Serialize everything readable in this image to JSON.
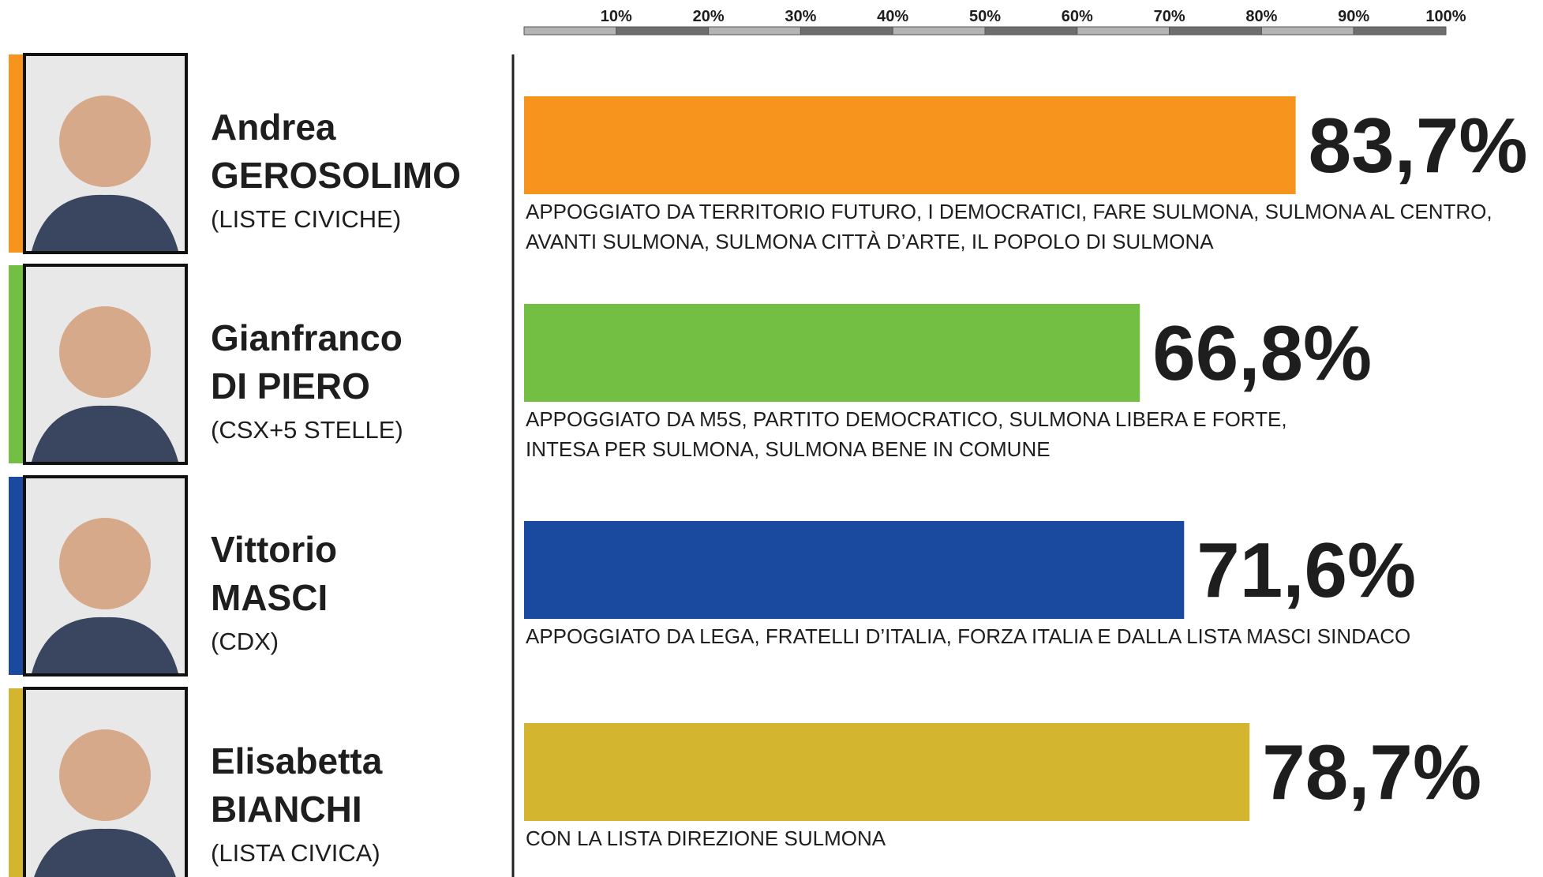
{
  "chart_data": {
    "type": "bar",
    "orientation": "horizontal",
    "xlim": [
      0,
      100
    ],
    "xticks": [
      {
        "value": 10,
        "label": "10%"
      },
      {
        "value": 20,
        "label": "20%"
      },
      {
        "value": 30,
        "label": "30%"
      },
      {
        "value": 40,
        "label": "40%"
      },
      {
        "value": 50,
        "label": "50%"
      },
      {
        "value": 60,
        "label": "60%"
      },
      {
        "value": 70,
        "label": "70%"
      },
      {
        "value": 80,
        "label": "80%"
      },
      {
        "value": 90,
        "label": "90%"
      },
      {
        "value": 100,
        "label": "100%"
      }
    ],
    "values": [
      83.7,
      66.8,
      71.6,
      78.7
    ],
    "value_labels": [
      "83,7%",
      "66,8%",
      "71,6%",
      "78,7%"
    ],
    "candidates": [
      {
        "first_name": "Andrea",
        "last_name": "GEROSOLIMO",
        "coalition": "(LISTE CIVICHE)",
        "color": "#f7941d",
        "support": [
          "APPOGGIATO DA TERRITORIO FUTURO, I DEMOCRATICI, FARE SULMONA, SULMONA AL CENTRO,",
          "AVANTI SULMONA, SULMONA CITTÀ D’ARTE, IL POPOLO DI SULMONA"
        ]
      },
      {
        "first_name": "Gianfranco",
        "last_name": "DI PIERO",
        "coalition": "(CSX+5 STELLE)",
        "color": "#72bf44",
        "support": [
          "APPOGGIATO DA M5S, PARTITO DEMOCRATICO, SULMONA LIBERA E FORTE,",
          "INTESA PER SULMONA, SULMONA BENE IN COMUNE"
        ]
      },
      {
        "first_name": "Vittorio",
        "last_name": "MASCI",
        "coalition": "(CDX)",
        "color": "#1a4aa0",
        "support": [
          "APPOGGIATO DA LEGA, FRATELLI D’ITALIA, FORZA ITALIA E DALLA LISTA MASCI SINDACO"
        ]
      },
      {
        "first_name": "Elisabetta",
        "last_name": "BIANCHI",
        "coalition": "(LISTA CIVICA)",
        "color": "#d4b52f",
        "support": [
          "CON LA LISTA DIREZIONE SULMONA"
        ]
      }
    ]
  }
}
